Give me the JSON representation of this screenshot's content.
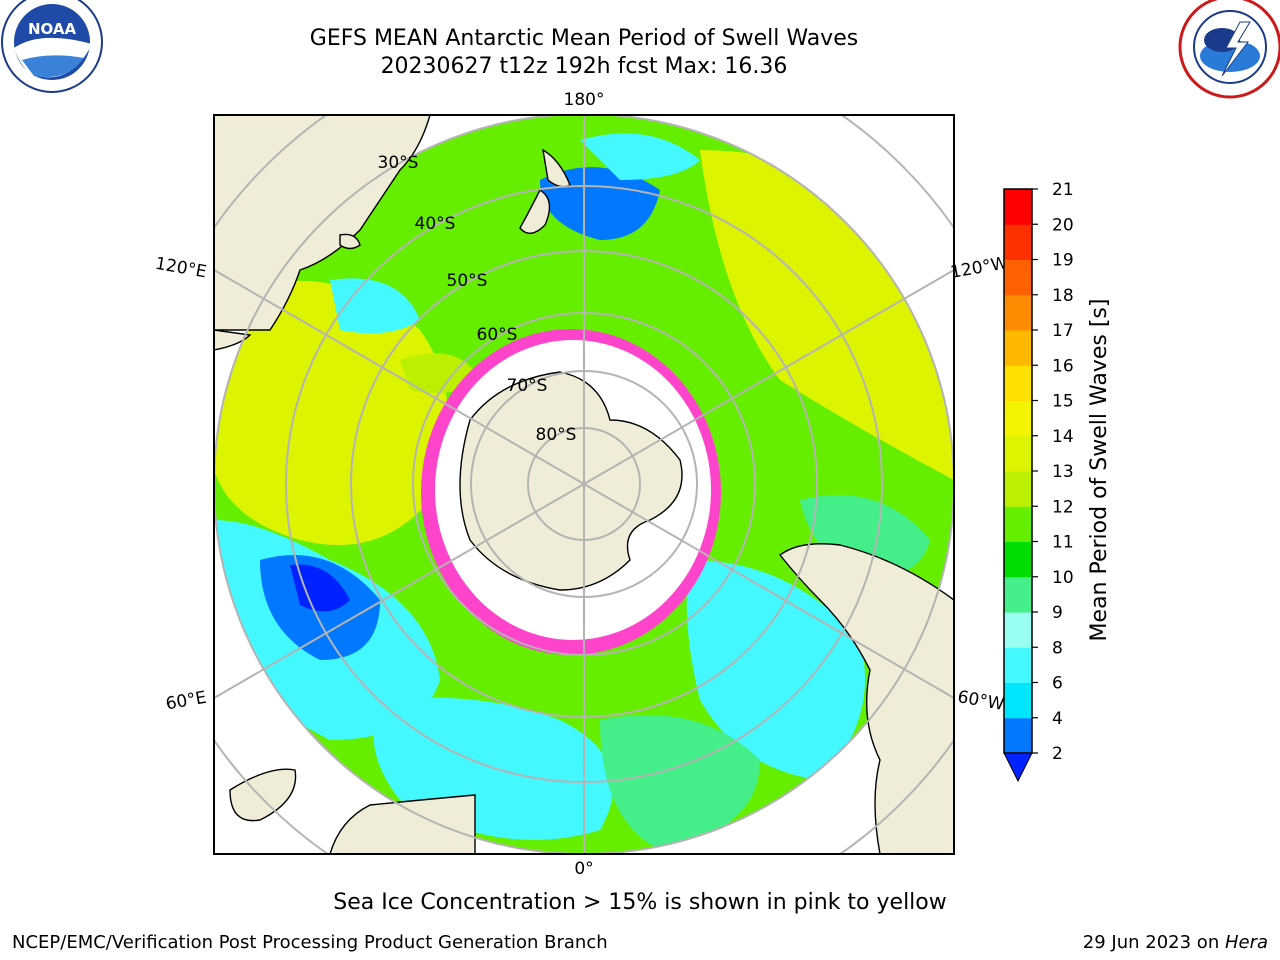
{
  "header": {
    "title_line1": "GEFS MEAN Antarctic Mean Period of Swell Waves",
    "title_line2": "20230627 t12z 192h fcst   Max: 16.36"
  },
  "logos": {
    "left": {
      "name": "noaa-logo",
      "text": "NOAA",
      "ring_text": "NATIONAL OCEANIC AND ATMOSPHERIC ADMINISTRATION · U.S. DEPARTMENT OF COMMERCE"
    },
    "right": {
      "name": "nws-logo",
      "ring_text": "NATIONAL WEATHER SERVICE"
    }
  },
  "map": {
    "projection": "south-polar-stereographic",
    "longitude_labels": [
      "180°",
      "120°E",
      "120°W",
      "60°E",
      "60°W",
      "0°"
    ],
    "latitude_labels": [
      "30°S",
      "40°S",
      "50°S",
      "60°S",
      "70°S",
      "80°S"
    ],
    "colors": {
      "land": "#efedd8",
      "sea_ice": "#ffffff",
      "ice_edge": "#ff44cc",
      "grid": "#b4b4b4"
    }
  },
  "colorbar": {
    "title": "Mean Period of Swell Waves [s]",
    "ticks": [
      "2",
      "4",
      "6",
      "8",
      "9",
      "10",
      "11",
      "12",
      "13",
      "14",
      "15",
      "16",
      "17",
      "18",
      "19",
      "20",
      "21"
    ],
    "bins": [
      {
        "from": 2,
        "to": 4,
        "color": "#0078ff"
      },
      {
        "from": 4,
        "to": 6,
        "color": "#00e6ff"
      },
      {
        "from": 6,
        "to": 8,
        "color": "#44f8ff"
      },
      {
        "from": 8,
        "to": 9,
        "color": "#99fff0"
      },
      {
        "from": 9,
        "to": 10,
        "color": "#44ee88"
      },
      {
        "from": 10,
        "to": 11,
        "color": "#00dd00"
      },
      {
        "from": 11,
        "to": 12,
        "color": "#66ee00"
      },
      {
        "from": 12,
        "to": 13,
        "color": "#bbf000"
      },
      {
        "from": 13,
        "to": 14,
        "color": "#ddf400"
      },
      {
        "from": 14,
        "to": 15,
        "color": "#f4f400"
      },
      {
        "from": 15,
        "to": 16,
        "color": "#ffe000"
      },
      {
        "from": 16,
        "to": 17,
        "color": "#ffb800"
      },
      {
        "from": 17,
        "to": 18,
        "color": "#ff8c00"
      },
      {
        "from": 18,
        "to": 19,
        "color": "#ff6000"
      },
      {
        "from": 19,
        "to": 20,
        "color": "#ff3000"
      },
      {
        "from": 20,
        "to": 21,
        "color": "#ff0000"
      }
    ],
    "under_color": "#0022ff"
  },
  "caption": "Sea Ice Concentration > 15% is shown in pink to yellow",
  "footer": {
    "left": "NCEP/EMC/Verification Post Processing Product Generation Branch",
    "right_date": "29 Jun 2023 on ",
    "right_host": "Hera"
  }
}
